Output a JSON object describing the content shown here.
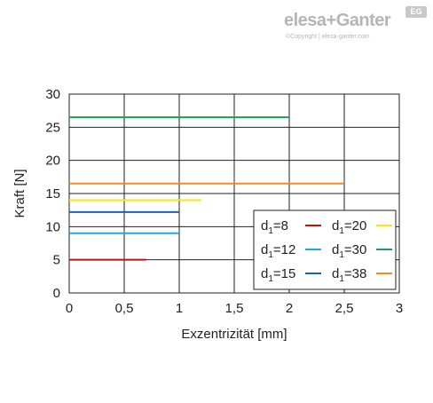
{
  "logo": {
    "brand": "elesa+Ganter",
    "copyright": "©Copyright | elesa-ganter.com",
    "badge": "EG"
  },
  "chart_data": {
    "type": "line",
    "title": "",
    "xlabel": "Exzentrizität [mm]",
    "ylabel": "Kraft [N]",
    "xlim": [
      0,
      3
    ],
    "ylim": [
      0,
      30
    ],
    "xticks": [
      0,
      0.5,
      1,
      1.5,
      2,
      2.5,
      3
    ],
    "xtick_labels": [
      "0",
      "0,5",
      "1",
      "1,5",
      "2",
      "2,5",
      "3"
    ],
    "yticks": [
      0,
      5,
      10,
      15,
      20,
      25,
      30
    ],
    "ytick_labels": [
      "0",
      "5",
      "10",
      "15",
      "20",
      "25",
      "30"
    ],
    "grid": true,
    "legend_position": "lower-right",
    "series": [
      {
        "name": "d1=8",
        "subscript": "1",
        "prefix": "d",
        "suffix": "=8",
        "color": "#c0101a",
        "x": [
          0,
          0.7
        ],
        "y": [
          5,
          5
        ]
      },
      {
        "name": "d1=12",
        "subscript": "1",
        "prefix": "d",
        "suffix": "=12",
        "color": "#1fa9e6",
        "x": [
          0,
          1
        ],
        "y": [
          9,
          9
        ]
      },
      {
        "name": "d1=15",
        "subscript": "1",
        "prefix": "d",
        "suffix": "=15",
        "color": "#1b62b0",
        "x": [
          0,
          1
        ],
        "y": [
          12.2,
          12.2
        ]
      },
      {
        "name": "d1=20",
        "subscript": "1",
        "prefix": "d",
        "suffix": "=20",
        "color": "#f2ea16",
        "x": [
          0,
          1.2
        ],
        "y": [
          14,
          14
        ]
      },
      {
        "name": "d1=30",
        "subscript": "1",
        "prefix": "d",
        "suffix": "=30",
        "color": "#1ca052",
        "x": [
          0,
          2
        ],
        "y": [
          26.5,
          26.5
        ]
      },
      {
        "name": "d1=38",
        "subscript": "1",
        "prefix": "d",
        "suffix": "=38",
        "color": "#f08a2c",
        "x": [
          0,
          2.5
        ],
        "y": [
          16.5,
          16.5
        ]
      }
    ],
    "legend_order": [
      0,
      3,
      1,
      4,
      2,
      5
    ]
  }
}
